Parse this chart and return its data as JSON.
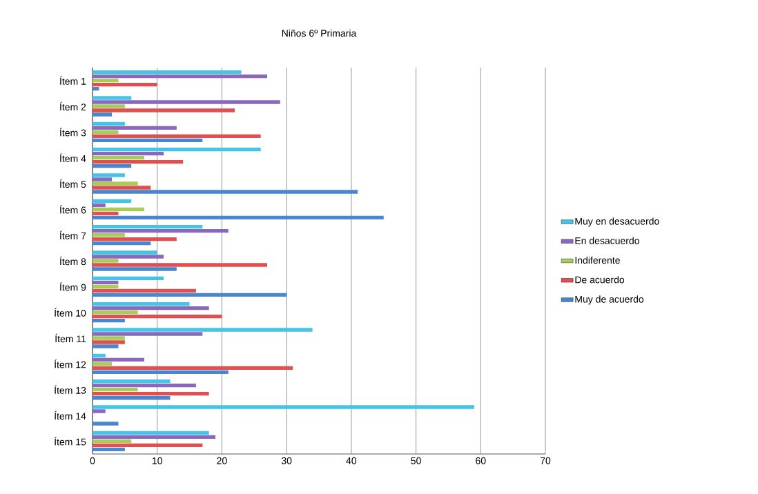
{
  "chart_data": {
    "type": "bar",
    "orientation": "horizontal",
    "title": "Niños 6º Primaria",
    "categories": [
      "Ítem 1",
      "Ítem 2",
      "Ítem 3",
      "Ítem 4",
      "Ítem 5",
      "Ítem 6",
      "Ítem 7",
      "Ítem 8",
      "Ítem 9",
      "Ítem 10",
      "Ítem 11",
      "Ítem 12",
      "Ítem 13",
      "Ítem 14",
      "Ítem 15"
    ],
    "series": [
      {
        "name": "Muy en desacuerdo",
        "color": "#44c4e6",
        "values": [
          23,
          6,
          5,
          26,
          5,
          6,
          17,
          10,
          11,
          15,
          34,
          2,
          12,
          59,
          18
        ]
      },
      {
        "name": "En desacuerdo",
        "color": "#8a68be",
        "values": [
          27,
          29,
          13,
          11,
          3,
          2,
          21,
          11,
          4,
          18,
          17,
          8,
          16,
          2,
          19
        ]
      },
      {
        "name": "Indiferente",
        "color": "#a8cc58",
        "values": [
          4,
          5,
          4,
          8,
          7,
          8,
          5,
          4,
          4,
          7,
          5,
          3,
          7,
          0,
          6
        ]
      },
      {
        "name": "De acuerdo",
        "color": "#e05050",
        "values": [
          10,
          22,
          26,
          14,
          9,
          4,
          13,
          27,
          16,
          20,
          5,
          31,
          18,
          0,
          17
        ]
      },
      {
        "name": "Muy de acuerdo",
        "color": "#4a86d0",
        "values": [
          1,
          3,
          17,
          6,
          41,
          45,
          9,
          13,
          30,
          5,
          4,
          21,
          12,
          4,
          5
        ]
      }
    ],
    "xlim": [
      0,
      70
    ],
    "xticks": [
      0,
      10,
      20,
      30,
      40,
      50,
      60,
      70
    ],
    "grid": "x",
    "legend": "right"
  }
}
